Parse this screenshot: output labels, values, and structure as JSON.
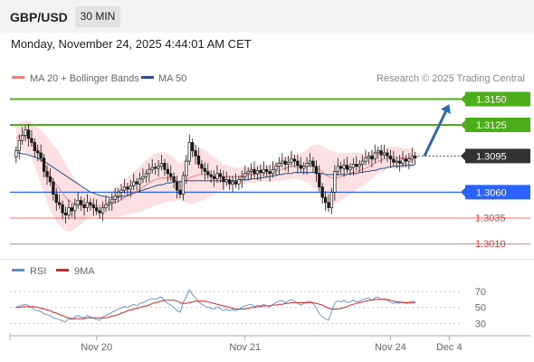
{
  "header": {
    "symbol": "GBP/USD",
    "timeframe": "30 MIN"
  },
  "datetime": "Monday, November 24, 2025 4:44:01 AM CET",
  "colors": {
    "candle": "#1a1a1a",
    "ma20": "#f08080",
    "band_fill": "#fbd6d8",
    "ma50": "#2b4f8c",
    "resistance": "#4caf1a",
    "support": "#2962ff",
    "target_line": "#ff6b6b",
    "current_price_tag": "#333333",
    "arrow": "#2b6cb0",
    "rsi": "#5b8ad8",
    "rsi_ma": "#e02020"
  },
  "chart_data": [
    {
      "type": "candlestick",
      "legend": [
        "MA 20 + Bollinger Bands",
        "MA 50"
      ],
      "copyright": "Research © 2025 Trading Central",
      "levels": [
        {
          "label": "1.3150",
          "value": 1.315,
          "kind": "resistance"
        },
        {
          "label": "1.3125",
          "value": 1.3125,
          "kind": "resistance"
        },
        {
          "label": "1.3095",
          "value": 1.3095,
          "kind": "current"
        },
        {
          "label": "1.3060",
          "value": 1.306,
          "kind": "pivot"
        },
        {
          "label": "1.3035",
          "value": 1.3035,
          "kind": "support"
        },
        {
          "label": "1.3010",
          "value": 1.301,
          "kind": "support"
        }
      ],
      "ylim": [
        1.3,
        1.316
      ],
      "x_ticks": [
        "Nov 20",
        "Nov 21",
        "Nov 24",
        "Dec 4"
      ],
      "x_tick_index": [
        26,
        74,
        121,
        140
      ],
      "x_range": [
        -2,
        144
      ],
      "forecast_arrow": {
        "from": [
          132,
          1.3095
        ],
        "to": [
          140,
          1.3145
        ]
      },
      "closes": [
        1.31,
        1.311,
        1.3115,
        1.312,
        1.3112,
        1.3108,
        1.31,
        1.3098,
        1.3093,
        1.308,
        1.3075,
        1.307,
        1.3058,
        1.305,
        1.3048,
        1.304,
        1.3038,
        1.3045,
        1.3042,
        1.3048,
        1.3052,
        1.3048,
        1.3045,
        1.305,
        1.3048,
        1.3045,
        1.3042,
        1.304,
        1.3045,
        1.3048,
        1.305,
        1.3053,
        1.3056,
        1.306,
        1.3062,
        1.3065,
        1.3063,
        1.3066,
        1.307,
        1.3068,
        1.3073,
        1.3075,
        1.3078,
        1.3082,
        1.3084,
        1.3083,
        1.3085,
        1.3088,
        1.3082,
        1.3078,
        1.3075,
        1.307,
        1.3062,
        1.3058,
        1.3076,
        1.309,
        1.3108,
        1.31,
        1.3095,
        1.3087,
        1.3083,
        1.308,
        1.3077,
        1.3075,
        1.3073,
        1.3078,
        1.3075,
        1.307,
        1.3072,
        1.3068,
        1.307,
        1.3068,
        1.3072,
        1.3075,
        1.3078,
        1.308,
        1.3082,
        1.3078,
        1.3081,
        1.3079,
        1.3082,
        1.308,
        1.3078,
        1.3082,
        1.3085,
        1.3088,
        1.309,
        1.3087,
        1.3089,
        1.3092,
        1.309,
        1.3086,
        1.3083,
        1.3085,
        1.3088,
        1.309,
        1.3085,
        1.3078,
        1.3065,
        1.3055,
        1.305,
        1.3045,
        1.306,
        1.308,
        1.3085,
        1.3083,
        1.3086,
        1.3082,
        1.3084,
        1.3087,
        1.3085,
        1.3087,
        1.309,
        1.3093,
        1.3095,
        1.3092,
        1.3098,
        1.31,
        1.3096,
        1.3098,
        1.3095,
        1.3092,
        1.3089,
        1.309,
        1.3088,
        1.3092,
        1.309,
        1.3092,
        1.3095,
        1.3093
      ],
      "ma20": [
        1.3112,
        1.3114,
        1.3115,
        1.3114,
        1.3113,
        1.311,
        1.3105,
        1.31,
        1.3094,
        1.3088,
        1.3082,
        1.3076,
        1.3071,
        1.3067,
        1.3063,
        1.3059,
        1.3055,
        1.3052,
        1.305,
        1.3049,
        1.3048,
        1.3047,
        1.3047,
        1.3047,
        1.3047,
        1.3047,
        1.3047,
        1.3047,
        1.3047,
        1.3047,
        1.3048,
        1.3049,
        1.305,
        1.3051,
        1.3053,
        1.3055,
        1.3056,
        1.3058,
        1.306,
        1.3061,
        1.3063,
        1.3065,
        1.3067,
        1.3069,
        1.3071,
        1.3072,
        1.3073,
        1.3074,
        1.3074,
        1.3074,
        1.3073,
        1.3072,
        1.3071,
        1.307,
        1.3071,
        1.3072,
        1.3074,
        1.3075,
        1.3076,
        1.3077,
        1.3077,
        1.3077,
        1.3077,
        1.3076,
        1.3076,
        1.3076,
        1.3075,
        1.3075,
        1.3075,
        1.3075,
        1.3075,
        1.3075,
        1.3075,
        1.3076,
        1.3076,
        1.3077,
        1.3077,
        1.3077,
        1.3078,
        1.3078,
        1.3078,
        1.3078,
        1.3079,
        1.3079,
        1.308,
        1.3081,
        1.3082,
        1.3083,
        1.3084,
        1.3085,
        1.3085,
        1.3085,
        1.3085,
        1.3085,
        1.3085,
        1.3086,
        1.3085,
        1.3084,
        1.3082,
        1.3079,
        1.3077,
        1.3075,
        1.3074,
        1.3074,
        1.3074,
        1.3075,
        1.3076,
        1.3077,
        1.3078,
        1.3079,
        1.308,
        1.3081,
        1.3082,
        1.3083,
        1.3085,
        1.3086,
        1.3088,
        1.309,
        1.3091,
        1.3092,
        1.3093,
        1.3094,
        1.3094,
        1.3094,
        1.3093,
        1.3093,
        1.3093,
        1.3093,
        1.3093,
        1.3093
      ],
      "band_width": [
        0.0012,
        0.0013,
        0.0014,
        0.0015,
        0.0016,
        0.0018,
        0.002,
        0.0023,
        0.0026,
        0.0029,
        0.0031,
        0.0033,
        0.0034,
        0.0035,
        0.0035,
        0.0034,
        0.0032,
        0.003,
        0.0027,
        0.0024,
        0.0021,
        0.0018,
        0.0015,
        0.0013,
        0.0011,
        0.001,
        0.001,
        0.001,
        0.001,
        0.0011,
        0.0012,
        0.0013,
        0.0014,
        0.0015,
        0.0016,
        0.0017,
        0.0018,
        0.0019,
        0.002,
        0.0021,
        0.0022,
        0.0023,
        0.0024,
        0.0024,
        0.0025,
        0.0025,
        0.0025,
        0.0025,
        0.0024,
        0.0023,
        0.0022,
        0.0021,
        0.0019,
        0.0018,
        0.002,
        0.0022,
        0.0025,
        0.0026,
        0.0026,
        0.0026,
        0.0025,
        0.0024,
        0.0022,
        0.002,
        0.0018,
        0.0016,
        0.0014,
        0.0012,
        0.0011,
        0.001,
        0.0009,
        0.0009,
        0.0008,
        0.0008,
        0.0008,
        0.0008,
        0.0008,
        0.0008,
        0.0008,
        0.0008,
        0.0008,
        0.0008,
        0.0008,
        0.0009,
        0.0009,
        0.001,
        0.0011,
        0.0011,
        0.0012,
        0.0012,
        0.0012,
        0.0012,
        0.0013,
        0.0014,
        0.0016,
        0.0018,
        0.002,
        0.0022,
        0.0024,
        0.0025,
        0.0026,
        0.0026,
        0.0026,
        0.0025,
        0.0024,
        0.0023,
        0.0022,
        0.0021,
        0.002,
        0.0019,
        0.0018,
        0.0017,
        0.0016,
        0.0015,
        0.0014,
        0.0013,
        0.0012,
        0.0011,
        0.0011,
        0.0011,
        0.001,
        0.001,
        0.001,
        0.001,
        0.001,
        0.001,
        0.0009,
        0.0009,
        0.0009,
        0.0009,
        0.0009,
        0.0009
      ],
      "ma50": [
        1.3098,
        1.3098,
        1.3097,
        1.3097,
        1.3096,
        1.3095,
        1.3094,
        1.3093,
        1.3091,
        1.309,
        1.3088,
        1.3086,
        1.3084,
        1.3082,
        1.308,
        1.3078,
        1.3076,
        1.3074,
        1.3072,
        1.307,
        1.3068,
        1.3066,
        1.3064,
        1.3062,
        1.306,
        1.3059,
        1.3058,
        1.3057,
        1.3056,
        1.3056,
        1.3055,
        1.3055,
        1.3055,
        1.3055,
        1.3056,
        1.3056,
        1.3057,
        1.3058,
        1.3059,
        1.306,
        1.3061,
        1.3062,
        1.3063,
        1.3064,
        1.3065,
        1.3066,
        1.3067,
        1.3067,
        1.3068,
        1.3069,
        1.3069,
        1.307,
        1.307,
        1.307,
        1.3071,
        1.3071,
        1.3071,
        1.3071,
        1.3071,
        1.3071,
        1.3071,
        1.3071,
        1.3071,
        1.3071,
        1.3071,
        1.3071,
        1.3071,
        1.3071,
        1.3071,
        1.3071,
        1.3071,
        1.3071,
        1.3071,
        1.3072,
        1.3072,
        1.3072,
        1.3073,
        1.3073,
        1.3073,
        1.3074,
        1.3074,
        1.3075,
        1.3075,
        1.3076,
        1.3076,
        1.3077,
        1.3077,
        1.3078,
        1.3078,
        1.3078,
        1.3079,
        1.3079,
        1.3079,
        1.3079,
        1.3079,
        1.3079,
        1.3079,
        1.3079,
        1.3078,
        1.3078,
        1.3077,
        1.3077,
        1.3077,
        1.3077,
        1.3077,
        1.3077,
        1.3077,
        1.3077,
        1.3078,
        1.3078,
        1.3078,
        1.3079,
        1.3079,
        1.308,
        1.308,
        1.3081,
        1.3081,
        1.3082,
        1.3083,
        1.3083,
        1.3084,
        1.3084,
        1.3085,
        1.3085,
        1.3085,
        1.3086,
        1.3086,
        1.3086,
        1.3086,
        1.3087
      ]
    },
    {
      "type": "line",
      "legend": [
        "RSI",
        "9MA"
      ],
      "y_ticks": [
        70,
        50,
        30
      ],
      "ylim": [
        18,
        78
      ],
      "rsi": [
        50,
        52,
        53,
        54,
        52,
        50,
        47,
        46,
        45,
        42,
        41,
        40,
        37,
        36,
        35,
        33,
        32,
        36,
        35,
        38,
        40,
        38,
        37,
        40,
        38,
        37,
        35,
        34,
        38,
        40,
        42,
        44,
        46,
        48,
        49,
        51,
        50,
        52,
        54,
        52,
        55,
        56,
        58,
        60,
        61,
        60,
        62,
        63,
        58,
        55,
        53,
        50,
        46,
        44,
        56,
        63,
        72,
        66,
        62,
        57,
        54,
        52,
        50,
        49,
        48,
        51,
        49,
        46,
        48,
        46,
        47,
        46,
        48,
        50,
        52,
        53,
        54,
        51,
        53,
        52,
        54,
        52,
        51,
        54,
        56,
        58,
        59,
        56,
        58,
        60,
        58,
        55,
        53,
        55,
        57,
        58,
        55,
        50,
        42,
        38,
        36,
        34,
        45,
        56,
        58,
        57,
        59,
        56,
        57,
        59,
        57,
        58,
        60,
        61,
        62,
        59,
        62,
        63,
        60,
        61,
        59,
        57,
        55,
        56,
        55,
        57,
        55,
        56,
        58,
        57
      ],
      "rsi_ma": [
        50,
        50,
        51,
        51,
        51,
        51,
        51,
        50,
        49,
        48,
        47,
        46,
        44,
        43,
        41,
        40,
        38,
        37,
        36,
        36,
        36,
        36,
        36,
        37,
        37,
        37,
        37,
        37,
        37,
        37,
        38,
        39,
        40,
        41,
        43,
        44,
        46,
        47,
        48,
        49,
        50,
        51,
        52,
        53,
        55,
        56,
        57,
        58,
        59,
        59,
        59,
        59,
        58,
        56,
        55,
        55,
        56,
        57,
        58,
        58,
        58,
        58,
        57,
        56,
        55,
        54,
        53,
        52,
        51,
        50,
        49,
        48,
        48,
        48,
        48,
        49,
        50,
        50,
        51,
        51,
        52,
        52,
        52,
        53,
        53,
        54,
        54,
        55,
        55,
        56,
        56,
        56,
        56,
        56,
        56,
        56,
        56,
        55,
        54,
        53,
        51,
        49,
        48,
        48,
        48,
        49,
        50,
        51,
        53,
        54,
        55,
        56,
        57,
        58,
        59,
        59,
        60,
        60,
        60,
        60,
        60,
        59,
        58,
        57,
        57,
        56,
        56,
        56,
        56,
        56
      ]
    }
  ]
}
